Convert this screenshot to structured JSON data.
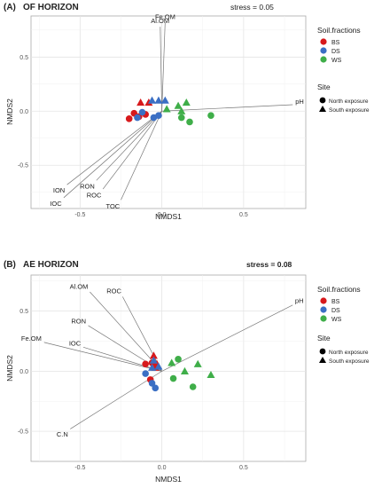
{
  "colors": {
    "BS": "#d7191c",
    "DS": "#3b6fc4",
    "WS": "#3fae49"
  },
  "chart_data": [
    {
      "type": "scatter",
      "panel_label": "(A)",
      "title": "OF HORIZON",
      "stress": "stress = 0.05",
      "xlabel": "NMDS1",
      "ylabel": "NMDS2",
      "xlim": [
        -0.8,
        0.88
      ],
      "ylim": [
        -0.9,
        0.88
      ],
      "xticks": [
        -0.5,
        0.0,
        0.5
      ],
      "xtick_labels": [
        "-0.5",
        "0.0",
        "0.5"
      ],
      "yticks": [
        -0.5,
        0.0,
        0.5
      ],
      "ytick_labels": [
        "-0.5",
        "0.0",
        "0.5"
      ],
      "grid": true,
      "legend": {
        "title1": "Soil.fractions",
        "items": [
          "BS",
          "DS",
          "WS"
        ],
        "title2": "Site",
        "site_items": [
          "North exposure",
          "South exposure"
        ]
      },
      "vectors": [
        {
          "label": "Al.OM",
          "x": -0.01,
          "y": 0.78
        },
        {
          "label": "Fe.OM",
          "x": 0.02,
          "y": 0.82
        },
        {
          "label": "pH",
          "x": 0.8,
          "y": 0.06
        },
        {
          "label": "ION",
          "x": -0.58,
          "y": -0.68
        },
        {
          "label": "RON",
          "x": -0.4,
          "y": -0.64
        },
        {
          "label": "ROC",
          "x": -0.36,
          "y": -0.72
        },
        {
          "label": "IOC",
          "x": -0.6,
          "y": -0.8
        },
        {
          "label": "TOC",
          "x": -0.25,
          "y": -0.82
        }
      ],
      "points": [
        {
          "x": -0.2,
          "y": -0.07,
          "fraction": "BS",
          "site": "North exposure"
        },
        {
          "x": -0.17,
          "y": -0.02,
          "fraction": "BS",
          "site": "North exposure"
        },
        {
          "x": -0.14,
          "y": -0.05,
          "fraction": "BS",
          "site": "North exposure"
        },
        {
          "x": -0.1,
          "y": -0.03,
          "fraction": "BS",
          "site": "North exposure"
        },
        {
          "x": -0.13,
          "y": 0.08,
          "fraction": "BS",
          "site": "South exposure"
        },
        {
          "x": -0.08,
          "y": 0.08,
          "fraction": "BS",
          "site": "South exposure"
        },
        {
          "x": -0.15,
          "y": -0.06,
          "fraction": "DS",
          "site": "North exposure"
        },
        {
          "x": -0.12,
          "y": -0.01,
          "fraction": "DS",
          "site": "North exposure"
        },
        {
          "x": -0.05,
          "y": -0.06,
          "fraction": "DS",
          "site": "North exposure"
        },
        {
          "x": -0.02,
          "y": -0.04,
          "fraction": "DS",
          "site": "North exposure"
        },
        {
          "x": -0.06,
          "y": 0.1,
          "fraction": "DS",
          "site": "South exposure"
        },
        {
          "x": -0.02,
          "y": 0.1,
          "fraction": "DS",
          "site": "South exposure"
        },
        {
          "x": 0.02,
          "y": 0.1,
          "fraction": "DS",
          "site": "South exposure"
        },
        {
          "x": 0.12,
          "y": -0.06,
          "fraction": "WS",
          "site": "North exposure"
        },
        {
          "x": 0.17,
          "y": -0.1,
          "fraction": "WS",
          "site": "North exposure"
        },
        {
          "x": 0.3,
          "y": -0.04,
          "fraction": "WS",
          "site": "North exposure"
        },
        {
          "x": 0.1,
          "y": 0.05,
          "fraction": "WS",
          "site": "South exposure"
        },
        {
          "x": 0.15,
          "y": 0.08,
          "fraction": "WS",
          "site": "South exposure"
        },
        {
          "x": 0.12,
          "y": 0.0,
          "fraction": "WS",
          "site": "South exposure"
        },
        {
          "x": 0.03,
          "y": 0.02,
          "fraction": "WS",
          "site": "South exposure"
        }
      ]
    },
    {
      "type": "scatter",
      "panel_label": "(B)",
      "title": "AE HORIZON",
      "stress": "stress = 0.08",
      "xlabel": "NMDS1",
      "ylabel": "NMDS2",
      "xlim": [
        -0.8,
        0.88
      ],
      "ylim": [
        -0.75,
        0.8
      ],
      "xticks": [
        -0.5,
        0.0,
        0.5
      ],
      "xtick_labels": [
        "-0.5",
        "0.0",
        "0.5"
      ],
      "yticks": [
        -0.5,
        0.0,
        0.5
      ],
      "ytick_labels": [
        "-0.5",
        "0.0",
        "0.5"
      ],
      "grid": true,
      "legend": {
        "title1": "Soil.fractions",
        "items": [
          "BS",
          "DS",
          "WS"
        ],
        "title2": "Site",
        "site_items": [
          "North exposure",
          "South exposure"
        ]
      },
      "vectors": [
        {
          "label": "Al.OM",
          "x": -0.44,
          "y": 0.66
        },
        {
          "label": "ROC",
          "x": -0.24,
          "y": 0.62
        },
        {
          "label": "RON",
          "x": -0.45,
          "y": 0.38
        },
        {
          "label": "Fe.OM",
          "x": -0.72,
          "y": 0.24
        },
        {
          "label": "IOC",
          "x": -0.48,
          "y": 0.2
        },
        {
          "label": "pH",
          "x": 0.8,
          "y": 0.55
        },
        {
          "label": "C.N",
          "x": -0.56,
          "y": -0.48
        }
      ],
      "points": [
        {
          "x": -0.1,
          "y": 0.06,
          "fraction": "BS",
          "site": "North exposure"
        },
        {
          "x": -0.06,
          "y": 0.07,
          "fraction": "BS",
          "site": "North exposure"
        },
        {
          "x": -0.07,
          "y": -0.07,
          "fraction": "BS",
          "site": "North exposure"
        },
        {
          "x": -0.05,
          "y": 0.13,
          "fraction": "BS",
          "site": "South exposure"
        },
        {
          "x": -0.03,
          "y": 0.06,
          "fraction": "BS",
          "site": "South exposure"
        },
        {
          "x": -0.04,
          "y": 0.03,
          "fraction": "BS",
          "site": "South exposure"
        },
        {
          "x": -0.1,
          "y": -0.02,
          "fraction": "DS",
          "site": "North exposure"
        },
        {
          "x": -0.06,
          "y": -0.1,
          "fraction": "DS",
          "site": "North exposure"
        },
        {
          "x": -0.04,
          "y": -0.14,
          "fraction": "DS",
          "site": "North exposure"
        },
        {
          "x": -0.06,
          "y": 0.03,
          "fraction": "DS",
          "site": "South exposure"
        },
        {
          "x": -0.02,
          "y": 0.04,
          "fraction": "DS",
          "site": "South exposure"
        },
        {
          "x": -0.05,
          "y": 0.09,
          "fraction": "DS",
          "site": "South exposure"
        },
        {
          "x": 0.07,
          "y": -0.06,
          "fraction": "WS",
          "site": "North exposure"
        },
        {
          "x": 0.1,
          "y": 0.1,
          "fraction": "WS",
          "site": "North exposure"
        },
        {
          "x": 0.19,
          "y": -0.13,
          "fraction": "WS",
          "site": "North exposure"
        },
        {
          "x": 0.06,
          "y": 0.07,
          "fraction": "WS",
          "site": "South exposure"
        },
        {
          "x": 0.14,
          "y": 0.0,
          "fraction": "WS",
          "site": "South exposure"
        },
        {
          "x": 0.22,
          "y": 0.06,
          "fraction": "WS",
          "site": "South exposure"
        },
        {
          "x": 0.3,
          "y": -0.03,
          "fraction": "WS",
          "site": "South exposure"
        }
      ]
    }
  ]
}
